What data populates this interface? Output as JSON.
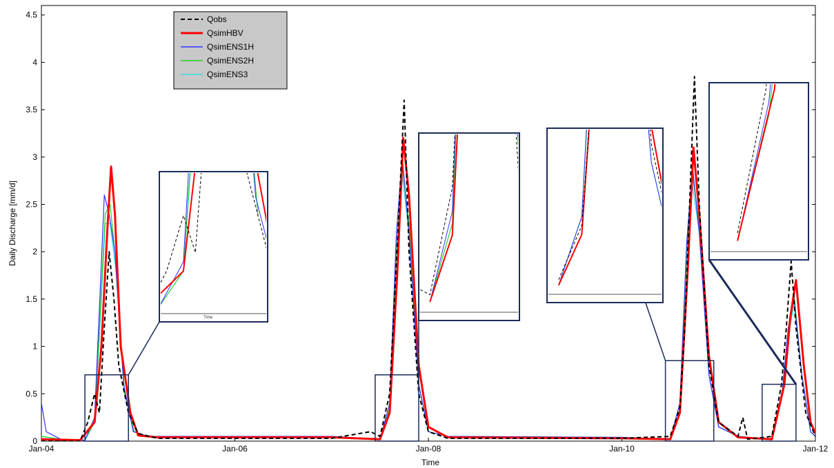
{
  "chart_data": {
    "type": "line",
    "title": "",
    "xlabel": "Time",
    "ylabel": "Daily Discharge [mm/d]",
    "ylim": [
      0,
      4.6
    ],
    "yticks": [
      "0",
      "0.5",
      "1",
      "1.5",
      "2",
      "2.5",
      "3",
      "3.5",
      "4",
      "4.5"
    ],
    "xticks": [
      "Jan-04",
      "Jan-06",
      "Jan-08",
      "Jan-10",
      "Jan-12"
    ],
    "xlim": [
      2004.0,
      2012.0
    ],
    "grid": false,
    "legend_position": "top-left",
    "series": [
      {
        "name": "Qobs",
        "color": "#000000",
        "dash": true,
        "points": [
          [
            2004.0,
            0.0
          ],
          [
            2004.4,
            0.0
          ],
          [
            2004.48,
            0.2
          ],
          [
            2004.55,
            0.5
          ],
          [
            2004.6,
            0.3
          ],
          [
            2004.65,
            1.2
          ],
          [
            2004.7,
            2.0
          ],
          [
            2004.75,
            1.5
          ],
          [
            2004.8,
            0.8
          ],
          [
            2004.9,
            0.3
          ],
          [
            2005.0,
            0.08
          ],
          [
            2005.2,
            0.03
          ],
          [
            2006.0,
            0.03
          ],
          [
            2007.0,
            0.03
          ],
          [
            2007.4,
            0.1
          ],
          [
            2007.5,
            0.05
          ],
          [
            2007.6,
            0.5
          ],
          [
            2007.7,
            2.5
          ],
          [
            2007.75,
            3.6
          ],
          [
            2007.8,
            2.0
          ],
          [
            2007.9,
            0.5
          ],
          [
            2008.0,
            0.1
          ],
          [
            2008.2,
            0.03
          ],
          [
            2010.0,
            0.03
          ],
          [
            2010.5,
            0.05
          ],
          [
            2010.6,
            0.35
          ],
          [
            2010.65,
            1.2
          ],
          [
            2010.7,
            2.5
          ],
          [
            2010.75,
            3.85
          ],
          [
            2010.8,
            2.5
          ],
          [
            2010.9,
            0.8
          ],
          [
            2011.0,
            0.2
          ],
          [
            2011.2,
            0.05
          ],
          [
            2011.25,
            0.25
          ],
          [
            2011.3,
            0.02
          ],
          [
            2011.55,
            0.05
          ],
          [
            2011.65,
            0.6
          ],
          [
            2011.7,
            1.2
          ],
          [
            2011.75,
            1.9
          ],
          [
            2011.8,
            1.2
          ],
          [
            2011.9,
            0.3
          ],
          [
            2012.0,
            0.05
          ]
        ]
      },
      {
        "name": "QsimHBV",
        "color": "#ff0000",
        "dash": false,
        "points": [
          [
            2004.0,
            0.02
          ],
          [
            2004.4,
            0.01
          ],
          [
            2004.55,
            0.2
          ],
          [
            2004.62,
            1.0
          ],
          [
            2004.68,
            2.2
          ],
          [
            2004.72,
            2.9
          ],
          [
            2004.76,
            2.4
          ],
          [
            2004.82,
            1.0
          ],
          [
            2004.92,
            0.3
          ],
          [
            2005.0,
            0.06
          ],
          [
            2005.2,
            0.04
          ],
          [
            2007.0,
            0.04
          ],
          [
            2007.5,
            0.02
          ],
          [
            2007.6,
            0.3
          ],
          [
            2007.68,
            1.8
          ],
          [
            2007.74,
            3.2
          ],
          [
            2007.8,
            2.6
          ],
          [
            2007.9,
            0.8
          ],
          [
            2008.0,
            0.15
          ],
          [
            2008.2,
            0.04
          ],
          [
            2010.0,
            0.03
          ],
          [
            2010.5,
            0.02
          ],
          [
            2010.6,
            0.3
          ],
          [
            2010.68,
            1.8
          ],
          [
            2010.74,
            3.1
          ],
          [
            2010.8,
            2.4
          ],
          [
            2010.9,
            0.9
          ],
          [
            2011.0,
            0.2
          ],
          [
            2011.2,
            0.04
          ],
          [
            2011.55,
            0.02
          ],
          [
            2011.68,
            0.6
          ],
          [
            2011.74,
            1.3
          ],
          [
            2011.8,
            1.7
          ],
          [
            2011.88,
            0.8
          ],
          [
            2011.95,
            0.2
          ],
          [
            2012.0,
            0.08
          ]
        ]
      },
      {
        "name": "QsimENS1H",
        "color": "#3333ff",
        "dash": false,
        "points": [
          [
            2004.0,
            0.4
          ],
          [
            2004.05,
            0.1
          ],
          [
            2004.2,
            0.02
          ],
          [
            2004.45,
            0.01
          ],
          [
            2004.55,
            0.25
          ],
          [
            2004.6,
            1.4
          ],
          [
            2004.65,
            2.6
          ],
          [
            2004.7,
            2.4
          ],
          [
            2004.76,
            2.0
          ],
          [
            2004.85,
            0.6
          ],
          [
            2004.95,
            0.1
          ],
          [
            2005.1,
            0.05
          ],
          [
            2007.0,
            0.05
          ],
          [
            2007.5,
            0.02
          ],
          [
            2007.6,
            0.4
          ],
          [
            2007.67,
            2.2
          ],
          [
            2007.73,
            3.0
          ],
          [
            2007.8,
            2.2
          ],
          [
            2007.9,
            0.6
          ],
          [
            2008.0,
            0.1
          ],
          [
            2008.2,
            0.05
          ],
          [
            2010.0,
            0.04
          ],
          [
            2010.5,
            0.02
          ],
          [
            2010.6,
            0.4
          ],
          [
            2010.67,
            2.1
          ],
          [
            2010.73,
            2.9
          ],
          [
            2010.8,
            2.2
          ],
          [
            2010.9,
            0.7
          ],
          [
            2011.0,
            0.15
          ],
          [
            2011.2,
            0.05
          ],
          [
            2011.55,
            0.02
          ],
          [
            2011.66,
            0.55
          ],
          [
            2011.72,
            1.2
          ],
          [
            2011.78,
            1.5
          ],
          [
            2011.86,
            0.7
          ],
          [
            2011.95,
            0.1
          ],
          [
            2012.0,
            0.05
          ]
        ]
      },
      {
        "name": "QsimENS2H",
        "color": "#22cc22",
        "dash": false,
        "points": [
          [
            2004.0,
            0.05
          ],
          [
            2004.2,
            0.02
          ],
          [
            2004.45,
            0.01
          ],
          [
            2004.55,
            0.2
          ],
          [
            2004.6,
            1.2
          ],
          [
            2004.66,
            2.4
          ],
          [
            2004.71,
            2.5
          ],
          [
            2004.77,
            1.9
          ],
          [
            2004.86,
            0.5
          ],
          [
            2004.96,
            0.1
          ],
          [
            2005.1,
            0.05
          ],
          [
            2007.0,
            0.05
          ],
          [
            2007.5,
            0.02
          ],
          [
            2007.6,
            0.35
          ],
          [
            2007.67,
            2.0
          ],
          [
            2007.73,
            2.9
          ],
          [
            2007.8,
            2.3
          ],
          [
            2007.9,
            0.6
          ],
          [
            2008.0,
            0.1
          ],
          [
            2008.2,
            0.05
          ],
          [
            2010.0,
            0.04
          ],
          [
            2010.5,
            0.02
          ],
          [
            2010.6,
            0.4
          ],
          [
            2010.67,
            2.0
          ],
          [
            2010.73,
            2.8
          ],
          [
            2010.8,
            2.3
          ],
          [
            2010.9,
            0.7
          ],
          [
            2011.0,
            0.15
          ],
          [
            2011.2,
            0.05
          ],
          [
            2011.55,
            0.02
          ],
          [
            2011.66,
            0.5
          ],
          [
            2011.72,
            1.1
          ],
          [
            2011.78,
            1.55
          ],
          [
            2011.86,
            0.7
          ],
          [
            2011.95,
            0.1
          ],
          [
            2012.0,
            0.05
          ]
        ]
      },
      {
        "name": "QsimENS3",
        "color": "#33dddd",
        "dash": false,
        "points": [
          [
            2004.0,
            0.05
          ],
          [
            2004.2,
            0.02
          ],
          [
            2004.45,
            0.01
          ],
          [
            2004.55,
            0.2
          ],
          [
            2004.6,
            1.1
          ],
          [
            2004.66,
            2.3
          ],
          [
            2004.71,
            2.3
          ],
          [
            2004.77,
            1.8
          ],
          [
            2004.86,
            0.5
          ],
          [
            2004.96,
            0.1
          ],
          [
            2005.1,
            0.05
          ],
          [
            2007.0,
            0.05
          ],
          [
            2007.5,
            0.02
          ],
          [
            2007.6,
            0.35
          ],
          [
            2007.67,
            2.0
          ],
          [
            2007.73,
            2.8
          ],
          [
            2007.8,
            2.2
          ],
          [
            2007.9,
            0.6
          ],
          [
            2008.0,
            0.1
          ],
          [
            2008.2,
            0.05
          ],
          [
            2010.0,
            0.04
          ],
          [
            2010.5,
            0.02
          ],
          [
            2010.6,
            0.4
          ],
          [
            2010.67,
            2.0
          ],
          [
            2010.73,
            2.7
          ],
          [
            2010.8,
            2.2
          ],
          [
            2010.9,
            0.7
          ],
          [
            2011.0,
            0.15
          ],
          [
            2011.2,
            0.05
          ],
          [
            2011.55,
            0.02
          ],
          [
            2011.66,
            0.5
          ],
          [
            2011.72,
            1.1
          ],
          [
            2011.78,
            1.45
          ],
          [
            2011.86,
            0.7
          ],
          [
            2011.95,
            0.1
          ],
          [
            2012.0,
            0.05
          ]
        ]
      }
    ],
    "insets": [
      {
        "target_x": [
          2004.45,
          2004.9
        ],
        "target_y": [
          0,
          0.7
        ],
        "inset_tick": "Time"
      },
      {
        "target_x": [
          2007.45,
          2007.9
        ],
        "target_y": [
          0,
          0.7
        ],
        "inset_tick": ""
      },
      {
        "target_x": [
          2010.45,
          2010.95
        ],
        "target_y": [
          0,
          0.85
        ],
        "inset_tick": ""
      },
      {
        "target_x": [
          2011.45,
          2011.8
        ],
        "target_y": [
          0,
          0.6
        ],
        "inset_tick": ""
      }
    ]
  }
}
